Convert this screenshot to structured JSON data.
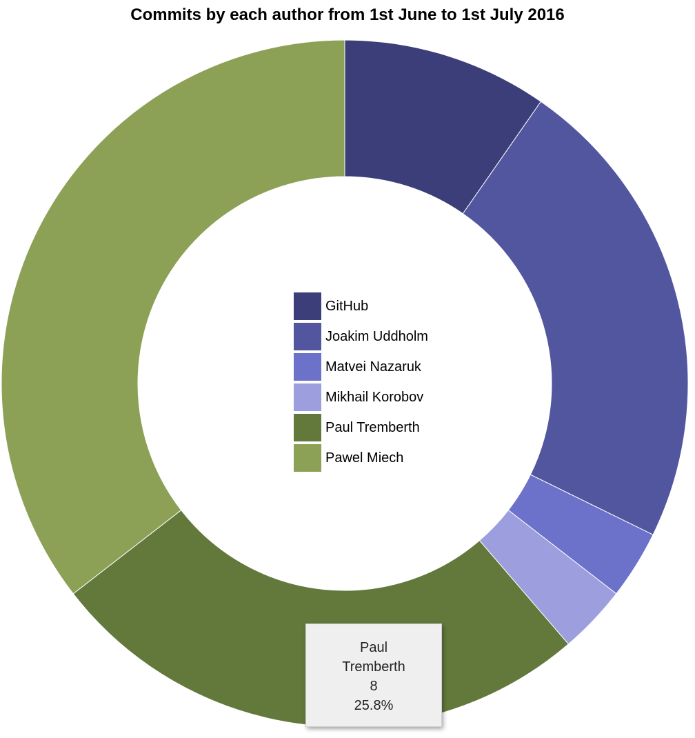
{
  "chart_data": {
    "type": "pie",
    "donut": true,
    "title": "Commits by each author from 1st June to 1st July 2016",
    "legend_position": "center",
    "slices": [
      {
        "label": "GitHub",
        "value": 3,
        "color": "#3b3e78"
      },
      {
        "label": "Joakim Uddholm",
        "value": 7,
        "color": "#51569f"
      },
      {
        "label": "Matvei Nazaruk",
        "value": 1,
        "color": "#6c72c9"
      },
      {
        "label": "Mikhail Korobov",
        "value": 1,
        "color": "#9c9ede"
      },
      {
        "label": "Paul Tremberth",
        "value": 8,
        "color": "#63793c"
      },
      {
        "label": "Pawel Miech",
        "value": 11,
        "color": "#8ca156"
      }
    ],
    "tooltip": {
      "name": "Paul Tremberth",
      "value": "8",
      "percent": "25.8%"
    }
  }
}
